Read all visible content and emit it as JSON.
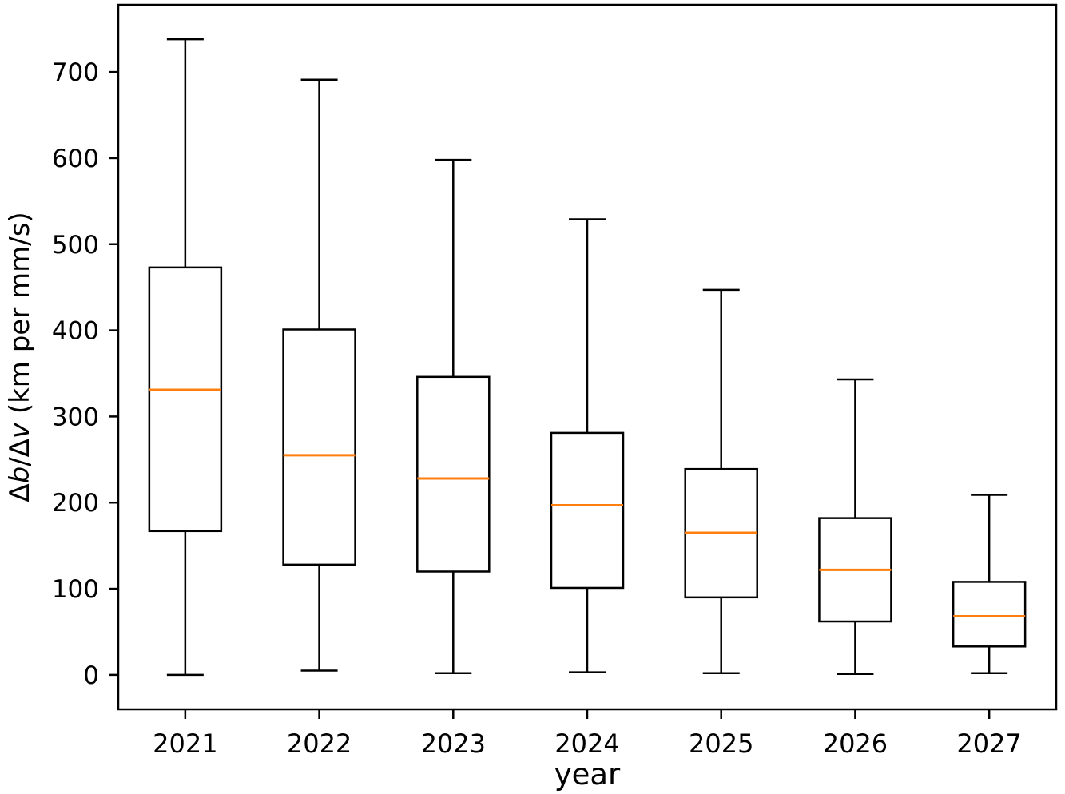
{
  "figure": {
    "background": "#ffffff"
  },
  "chart_data": {
    "type": "box",
    "title": "",
    "xlabel": "year",
    "ylabel": "Δb/Δv (km per mm/s)",
    "ylabel_segments": [
      {
        "text": "Δ",
        "italic": false
      },
      {
        "text": "b",
        "italic": true
      },
      {
        "text": "/Δ",
        "italic": false
      },
      {
        "text": "v",
        "italic": true
      },
      {
        "text": " (km per mm/s)",
        "italic": false
      }
    ],
    "categories": [
      "2021",
      "2022",
      "2023",
      "2024",
      "2025",
      "2026",
      "2027"
    ],
    "series": [
      {
        "label": "2021",
        "whisker_low": 0,
        "q1": 167,
        "median": 331,
        "q3": 473,
        "whisker_high": 738
      },
      {
        "label": "2022",
        "whisker_low": 5,
        "q1": 128,
        "median": 255,
        "q3": 401,
        "whisker_high": 691
      },
      {
        "label": "2023",
        "whisker_low": 2,
        "q1": 120,
        "median": 228,
        "q3": 346,
        "whisker_high": 598
      },
      {
        "label": "2024",
        "whisker_low": 3,
        "q1": 101,
        "median": 197,
        "q3": 281,
        "whisker_high": 529
      },
      {
        "label": "2025",
        "whisker_low": 2,
        "q1": 90,
        "median": 165,
        "q3": 239,
        "whisker_high": 447
      },
      {
        "label": "2026",
        "whisker_low": 1,
        "q1": 62,
        "median": 122,
        "q3": 182,
        "whisker_high": 343
      },
      {
        "label": "2027",
        "whisker_low": 2,
        "q1": 33,
        "median": 68,
        "q3": 108,
        "whisker_high": 209
      }
    ],
    "yticks": [
      0,
      100,
      200,
      300,
      400,
      500,
      600,
      700
    ],
    "ylim": [
      -40,
      778
    ],
    "grid": false,
    "legend": "none",
    "colors": {
      "box_edge": "#000000",
      "median": "#ff7f0e",
      "background": "#ffffff",
      "text": "#000000"
    }
  }
}
